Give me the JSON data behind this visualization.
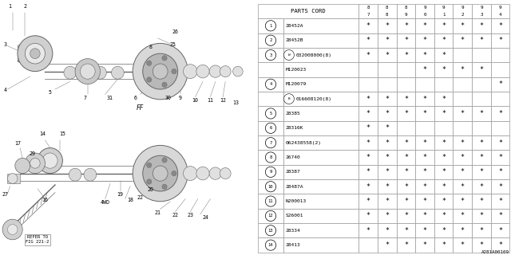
{
  "bg_color": "#ffffff",
  "col_header": "PARTS CORD",
  "year_cols": [
    "87",
    "88",
    "89",
    "90",
    "91",
    "92",
    "93",
    "94"
  ],
  "rows": [
    {
      "num": "1",
      "part": "28452A",
      "special": null,
      "stars": [
        1,
        1,
        1,
        1,
        1,
        1,
        1,
        1
      ]
    },
    {
      "num": "2",
      "part": "28452B",
      "special": null,
      "stars": [
        1,
        1,
        1,
        1,
        1,
        1,
        1,
        1
      ]
    },
    {
      "num": "3",
      "part": "032008000(8)",
      "special": "W",
      "stars": [
        1,
        1,
        1,
        1,
        1,
        0,
        0,
        0
      ]
    },
    {
      "num": "",
      "part": "M120023",
      "special": null,
      "stars": [
        0,
        0,
        0,
        1,
        1,
        1,
        1,
        0
      ]
    },
    {
      "num": "4",
      "part": "M120079",
      "special": null,
      "stars": [
        0,
        0,
        0,
        0,
        0,
        0,
        0,
        1
      ]
    },
    {
      "num": "",
      "part": "016608120(8)",
      "special": "B",
      "stars": [
        1,
        1,
        1,
        1,
        1,
        0,
        0,
        0
      ]
    },
    {
      "num": "5",
      "part": "28385",
      "special": null,
      "stars": [
        1,
        1,
        1,
        1,
        1,
        1,
        1,
        1
      ]
    },
    {
      "num": "6",
      "part": "28316K",
      "special": null,
      "stars": [
        1,
        1,
        0,
        0,
        0,
        0,
        0,
        0
      ]
    },
    {
      "num": "7",
      "part": "062438558(2)",
      "special": null,
      "stars": [
        1,
        1,
        1,
        1,
        1,
        1,
        1,
        1
      ]
    },
    {
      "num": "8",
      "part": "26740",
      "special": null,
      "stars": [
        1,
        1,
        1,
        1,
        1,
        1,
        1,
        1
      ]
    },
    {
      "num": "9",
      "part": "28387",
      "special": null,
      "stars": [
        1,
        1,
        1,
        1,
        1,
        1,
        1,
        1
      ]
    },
    {
      "num": "10",
      "part": "28487A",
      "special": null,
      "stars": [
        1,
        1,
        1,
        1,
        1,
        1,
        1,
        1
      ]
    },
    {
      "num": "11",
      "part": "N200013",
      "special": null,
      "stars": [
        1,
        1,
        1,
        1,
        1,
        1,
        1,
        1
      ]
    },
    {
      "num": "12",
      "part": "S26001",
      "special": null,
      "stars": [
        1,
        1,
        1,
        1,
        1,
        1,
        1,
        1
      ]
    },
    {
      "num": "13",
      "part": "28334",
      "special": null,
      "stars": [
        1,
        1,
        1,
        1,
        1,
        1,
        1,
        1
      ]
    },
    {
      "num": "14",
      "part": "28413",
      "special": null,
      "stars": [
        0,
        1,
        1,
        1,
        1,
        1,
        1,
        1
      ]
    }
  ],
  "footer_code": "A281A00109",
  "ref_text": "REFER TO\nFIG 221-2",
  "lc": "#666666",
  "tc": "#000000",
  "gc": "#999999"
}
